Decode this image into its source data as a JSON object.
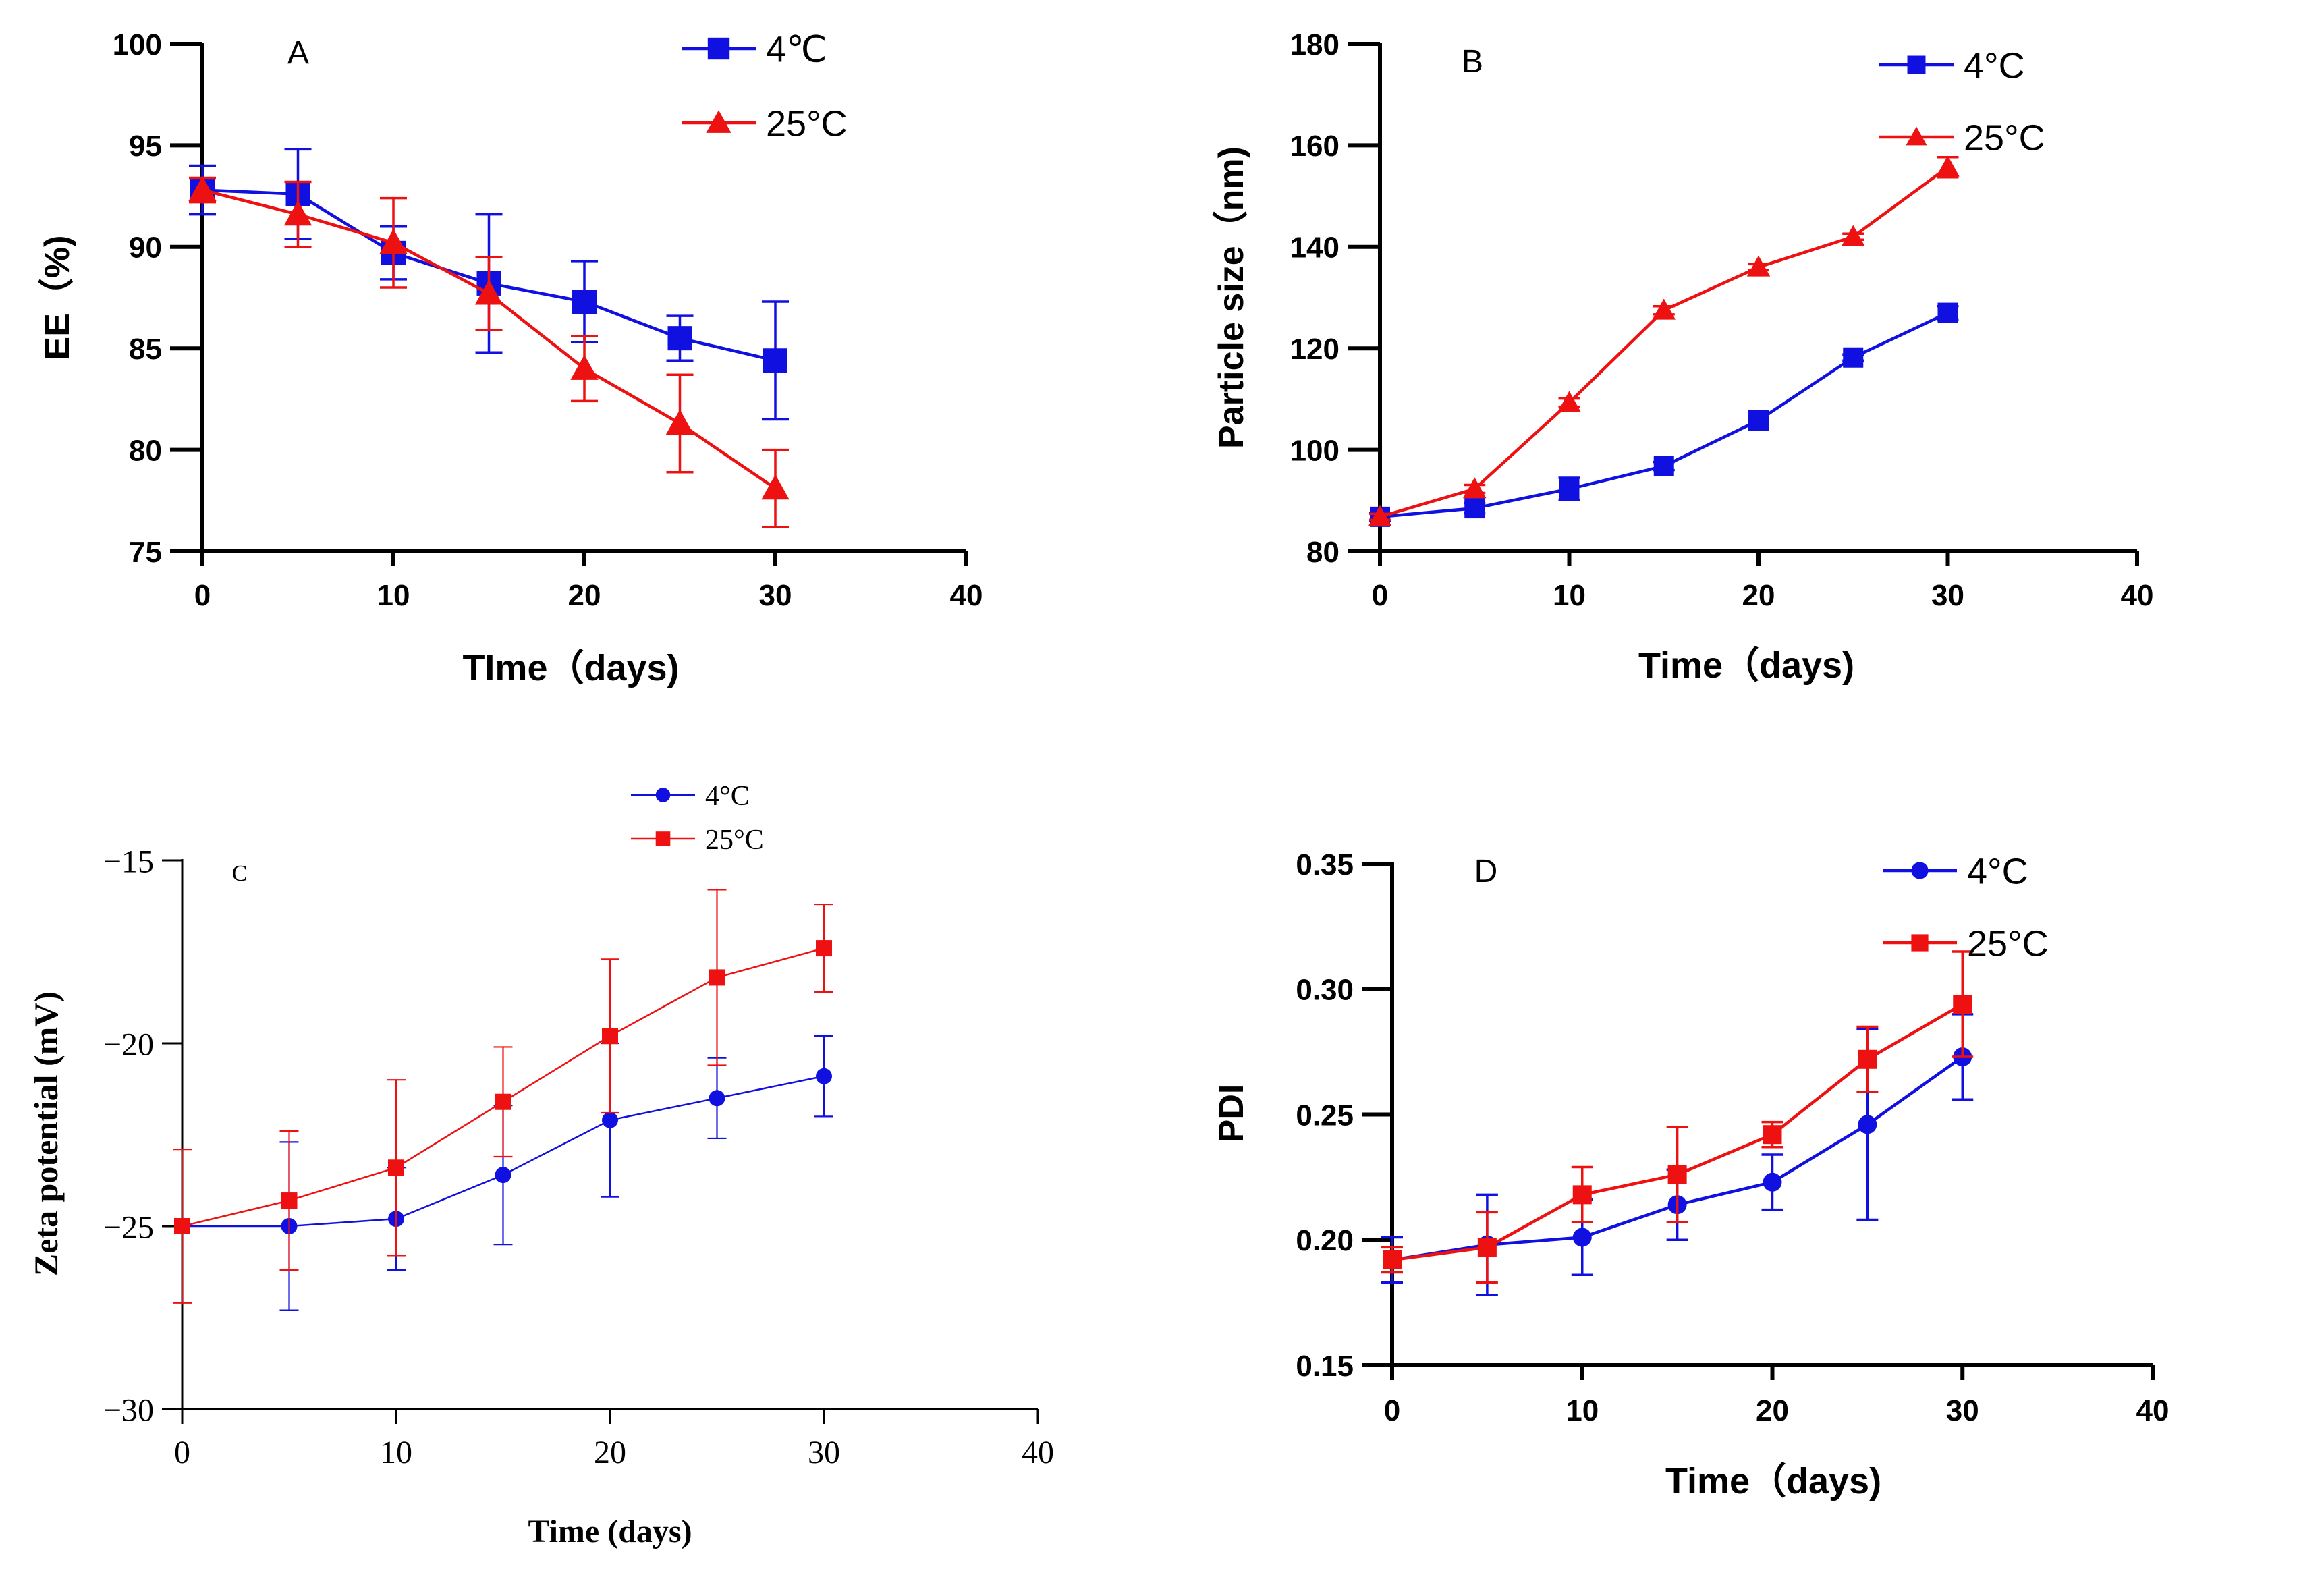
{
  "colors": {
    "cold": "#1010e0",
    "warm": "#ee1111",
    "axis": "#000000"
  },
  "chart_data": [
    {
      "panel": "A",
      "type": "line",
      "font": "sans",
      "panel_label": "A",
      "title": "",
      "xlabel": "TIme（days)",
      "ylabel": "EE（%)",
      "xlim": [
        0,
        40
      ],
      "ylim": [
        75,
        100
      ],
      "xticks": [
        0,
        10,
        20,
        30,
        40
      ],
      "yticks": [
        75,
        80,
        85,
        90,
        95,
        100
      ],
      "ytick_labels": [
        "75",
        "80",
        "85",
        "90",
        "95",
        "100"
      ],
      "legend": "top-right",
      "x": [
        0,
        5,
        10,
        15,
        20,
        25,
        30
      ],
      "series": [
        {
          "name": "4℃",
          "color": "#1010e0",
          "marker": "square",
          "values": [
            92.8,
            92.6,
            89.7,
            88.2,
            87.3,
            85.5,
            84.4
          ],
          "errors": [
            1.2,
            2.2,
            1.3,
            3.4,
            2.0,
            1.1,
            2.9
          ]
        },
        {
          "name": "25°C",
          "color": "#ee1111",
          "marker": "triangle",
          "values": [
            92.8,
            91.6,
            90.2,
            87.7,
            84.0,
            81.3,
            78.1
          ],
          "errors": [
            0.6,
            1.6,
            2.2,
            1.8,
            1.6,
            2.4,
            1.9
          ]
        }
      ]
    },
    {
      "panel": "B",
      "type": "line",
      "font": "sans",
      "panel_label": "B",
      "title": "",
      "xlabel": "Time（days)",
      "ylabel": "Particle size（nm)",
      "xlim": [
        0,
        40
      ],
      "ylim": [
        80,
        180
      ],
      "xticks": [
        0,
        10,
        20,
        30,
        40
      ],
      "yticks": [
        80,
        100,
        120,
        140,
        160,
        180
      ],
      "ytick_labels": [
        "80",
        "100",
        "120",
        "140",
        "160",
        "180"
      ],
      "legend": "top-right",
      "x": [
        0,
        5,
        10,
        15,
        20,
        25,
        30
      ],
      "series": [
        {
          "name": "4°C",
          "color": "#1010e0",
          "marker": "square-small",
          "values": [
            86.8,
            88.5,
            92.3,
            96.8,
            105.8,
            118.2,
            127.0
          ],
          "errors": [
            0.8,
            1.0,
            2.2,
            0.8,
            1.2,
            0.6,
            1.3
          ]
        },
        {
          "name": "25°C",
          "color": "#ee1111",
          "marker": "triangle",
          "values": [
            86.8,
            92.3,
            109.3,
            127.5,
            136.0,
            142.0,
            155.7
          ],
          "errors": [
            0.6,
            0.8,
            0.8,
            0.8,
            0.6,
            0.6,
            2.0
          ]
        }
      ]
    },
    {
      "panel": "C",
      "type": "line",
      "font": "serif",
      "panel_label": "C",
      "title": "",
      "xlabel": "Time (days)",
      "ylabel": "Zeta potential (mV)",
      "xlim": [
        0,
        40
      ],
      "ylim": [
        -30,
        -15
      ],
      "xticks": [
        0,
        10,
        20,
        30,
        40
      ],
      "yticks": [
        -30,
        -25,
        -20,
        -15
      ],
      "ytick_labels": [
        "−30",
        "−25",
        "−20",
        "−15"
      ],
      "legend": "top-right",
      "x": [
        0,
        5,
        10,
        15,
        20,
        25,
        30
      ],
      "series": [
        {
          "name": "4°C",
          "color": "#1010e0",
          "marker": "circle-small",
          "values": [
            -25.0,
            -25.0,
            -24.8,
            -23.6,
            -22.1,
            -21.5,
            -20.9
          ],
          "errors": [
            0,
            2.3,
            1.4,
            1.9,
            2.1,
            1.1,
            1.1
          ]
        },
        {
          "name": "25°C",
          "color": "#ee1111",
          "marker": "square-small",
          "values": [
            -25.0,
            -24.3,
            -23.4,
            -21.6,
            -19.8,
            -18.2,
            -17.4
          ],
          "errors": [
            2.1,
            1.9,
            2.4,
            1.5,
            2.1,
            2.4,
            1.2
          ]
        }
      ]
    },
    {
      "panel": "D",
      "type": "line",
      "font": "sans",
      "panel_label": "D",
      "title": "",
      "xlabel": "Time（days)",
      "ylabel": "PDI",
      "xlim": [
        0,
        40
      ],
      "ylim": [
        0.15,
        0.35
      ],
      "xticks": [
        0,
        10,
        20,
        30,
        40
      ],
      "yticks": [
        0.15,
        0.2,
        0.25,
        0.3,
        0.35
      ],
      "ytick_labels": [
        "0.15",
        "0.20",
        "0.25",
        "0.30",
        "0.35"
      ],
      "legend": "top-right",
      "x": [
        0,
        5,
        10,
        15,
        20,
        25,
        30
      ],
      "series": [
        {
          "name": "4°C",
          "color": "#1010e0",
          "marker": "circle",
          "values": [
            0.192,
            0.198,
            0.201,
            0.214,
            0.223,
            0.246,
            0.273
          ],
          "errors": [
            0.009,
            0.02,
            0.015,
            0.014,
            0.011,
            0.038,
            0.017
          ]
        },
        {
          "name": "25°C",
          "color": "#ee1111",
          "marker": "square",
          "values": [
            0.192,
            0.197,
            0.218,
            0.226,
            0.242,
            0.272,
            0.294
          ],
          "errors": [
            0.005,
            0.014,
            0.011,
            0.019,
            0.005,
            0.013,
            0.021
          ]
        }
      ]
    }
  ]
}
